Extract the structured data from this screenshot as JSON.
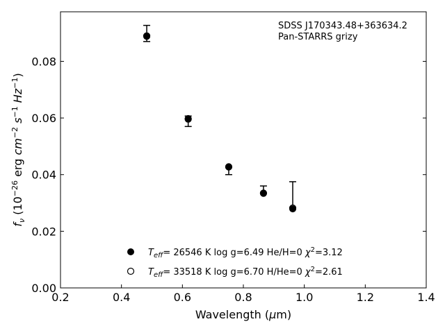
{
  "chart_data": {
    "type": "scatter",
    "xlabel": "Wavelength (μm)",
    "ylabel": "f_ν (10^-26 erg cm^-2 s^-1 Hz^-1)",
    "xlim": [
      0.2,
      1.4
    ],
    "ylim": [
      0.0,
      0.0975
    ],
    "xticks": [
      "0.2",
      "0.4",
      "0.6",
      "0.8",
      "1.0",
      "1.2",
      "1.4"
    ],
    "yticks": [
      "0.00",
      "0.02",
      "0.04",
      "0.06",
      "0.08"
    ],
    "annotation": [
      "SDSS J170343.48+363634.2",
      "Pan-STARRS grizy"
    ],
    "observed": {
      "x": [
        0.483,
        0.619,
        0.752,
        0.866,
        0.962
      ],
      "y": [
        0.0892,
        0.0595,
        0.0425,
        0.0335,
        0.0283
      ],
      "err_low": [
        0.0022,
        0.0025,
        0.0025,
        0.0,
        0.0
      ],
      "err_high": [
        0.0035,
        0.0012,
        0.0,
        0.0025,
        0.0092
      ]
    },
    "series": [
      {
        "name": "T_eff= 26546 K  log g=6.49  He/H=0  χ²=3.12",
        "marker": "filled",
        "x": [
          0.483,
          0.619,
          0.752,
          0.866,
          0.962
        ],
        "y": [
          0.0888,
          0.0598,
          0.0428,
          0.0335,
          0.0279
        ]
      },
      {
        "name": "T_eff= 33518 K  log g=6.70  H/He=0  χ²=2.61",
        "marker": "open",
        "x": [
          0.483,
          0.619,
          0.752,
          0.866,
          0.962
        ],
        "y": [
          0.089,
          0.0596,
          0.0427,
          0.0334,
          0.0282
        ]
      }
    ],
    "legend_position": "bottom-center",
    "grid": false,
    "colors": {
      "marker": "#000000",
      "axes": "#000000"
    }
  }
}
